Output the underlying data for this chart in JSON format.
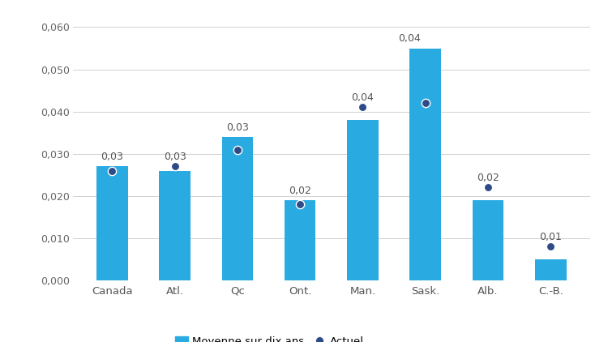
{
  "categories": [
    "Canada",
    "Atl.",
    "Qc",
    "Ont.",
    "Man.",
    "Sask.",
    "Alb.",
    "C.-B."
  ],
  "bar_values": [
    0.027,
    0.026,
    0.034,
    0.019,
    0.038,
    0.055,
    0.019,
    0.005
  ],
  "dot_values": [
    0.026,
    0.027,
    0.031,
    0.018,
    0.041,
    0.042,
    0.022,
    0.008
  ],
  "labels": [
    "0,03",
    "0,03",
    "0,03",
    "0,02",
    "0,04",
    "0,04",
    "0,02",
    "0,01"
  ],
  "label_offsets_x": [
    0,
    0,
    0,
    0,
    0,
    -0.25,
    0,
    0
  ],
  "bar_color": "#29ABE2",
  "dot_color": "#2E4A87",
  "ylim": [
    0.0,
    0.064
  ],
  "yticks": [
    0.0,
    0.01,
    0.02,
    0.03,
    0.04,
    0.05,
    0.06
  ],
  "ytick_labels": [
    "0,000",
    "0,010",
    "0,020",
    "0,030",
    "0,040",
    "0,050",
    "0,060"
  ],
  "legend_bar_label": "Moyenne sur dix ans",
  "legend_dot_label": "Actuel",
  "background_color": "#ffffff",
  "grid_color": "#d0d0d0",
  "bar_width": 0.5,
  "dot_size": 55,
  "label_fontsize": 9,
  "tick_fontsize": 9
}
